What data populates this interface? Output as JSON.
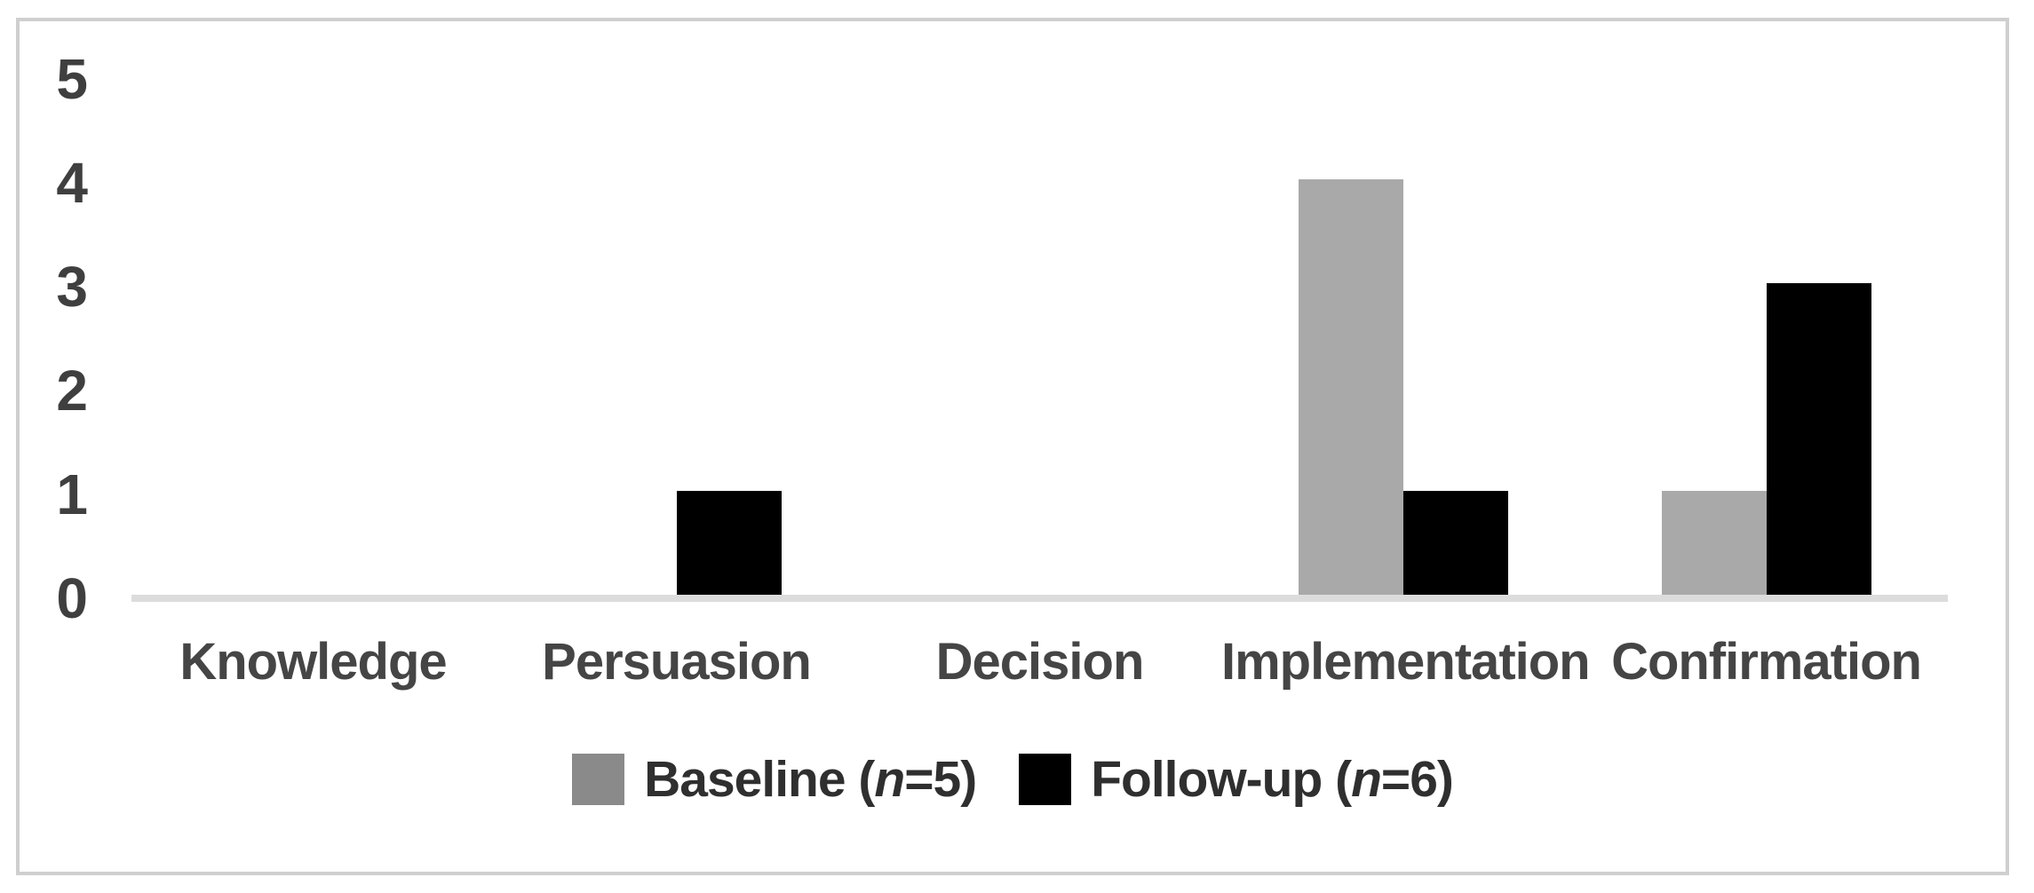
{
  "chart_data": {
    "type": "bar",
    "categories": [
      "Knowledge",
      "Persuasion",
      "Decision",
      "Implementation",
      "Confirmation"
    ],
    "series": [
      {
        "name": "Baseline (n=5)",
        "legend_label_parts": {
          "prefix": "Baseline (",
          "italic": "n",
          "suffix": "=5)"
        },
        "bar_color": "#a9a9a9",
        "swatch_color": "#8a8a8a",
        "values": [
          0,
          0,
          0,
          4,
          1
        ]
      },
      {
        "name": "Follow-up (n=6)",
        "legend_label_parts": {
          "prefix": "Follow-up (",
          "italic": "n",
          "suffix": "=6)"
        },
        "bar_color": "#000000",
        "swatch_color": "#000000",
        "values": [
          0,
          1,
          0,
          1,
          3
        ]
      }
    ],
    "title": "",
    "xlabel": "",
    "ylabel": "",
    "ylim": [
      0,
      5
    ],
    "yticks": [
      0,
      1,
      2,
      3,
      4,
      5
    ],
    "grid": false,
    "legend_position": "bottom"
  },
  "colors": {
    "background": "#ffffff",
    "frame_border": "#cfcfcf",
    "axis_line": "#dcdcdc",
    "tick_text": "#3f3f3f",
    "category_text": "#454545",
    "legend_text": "#2f2f2f"
  }
}
